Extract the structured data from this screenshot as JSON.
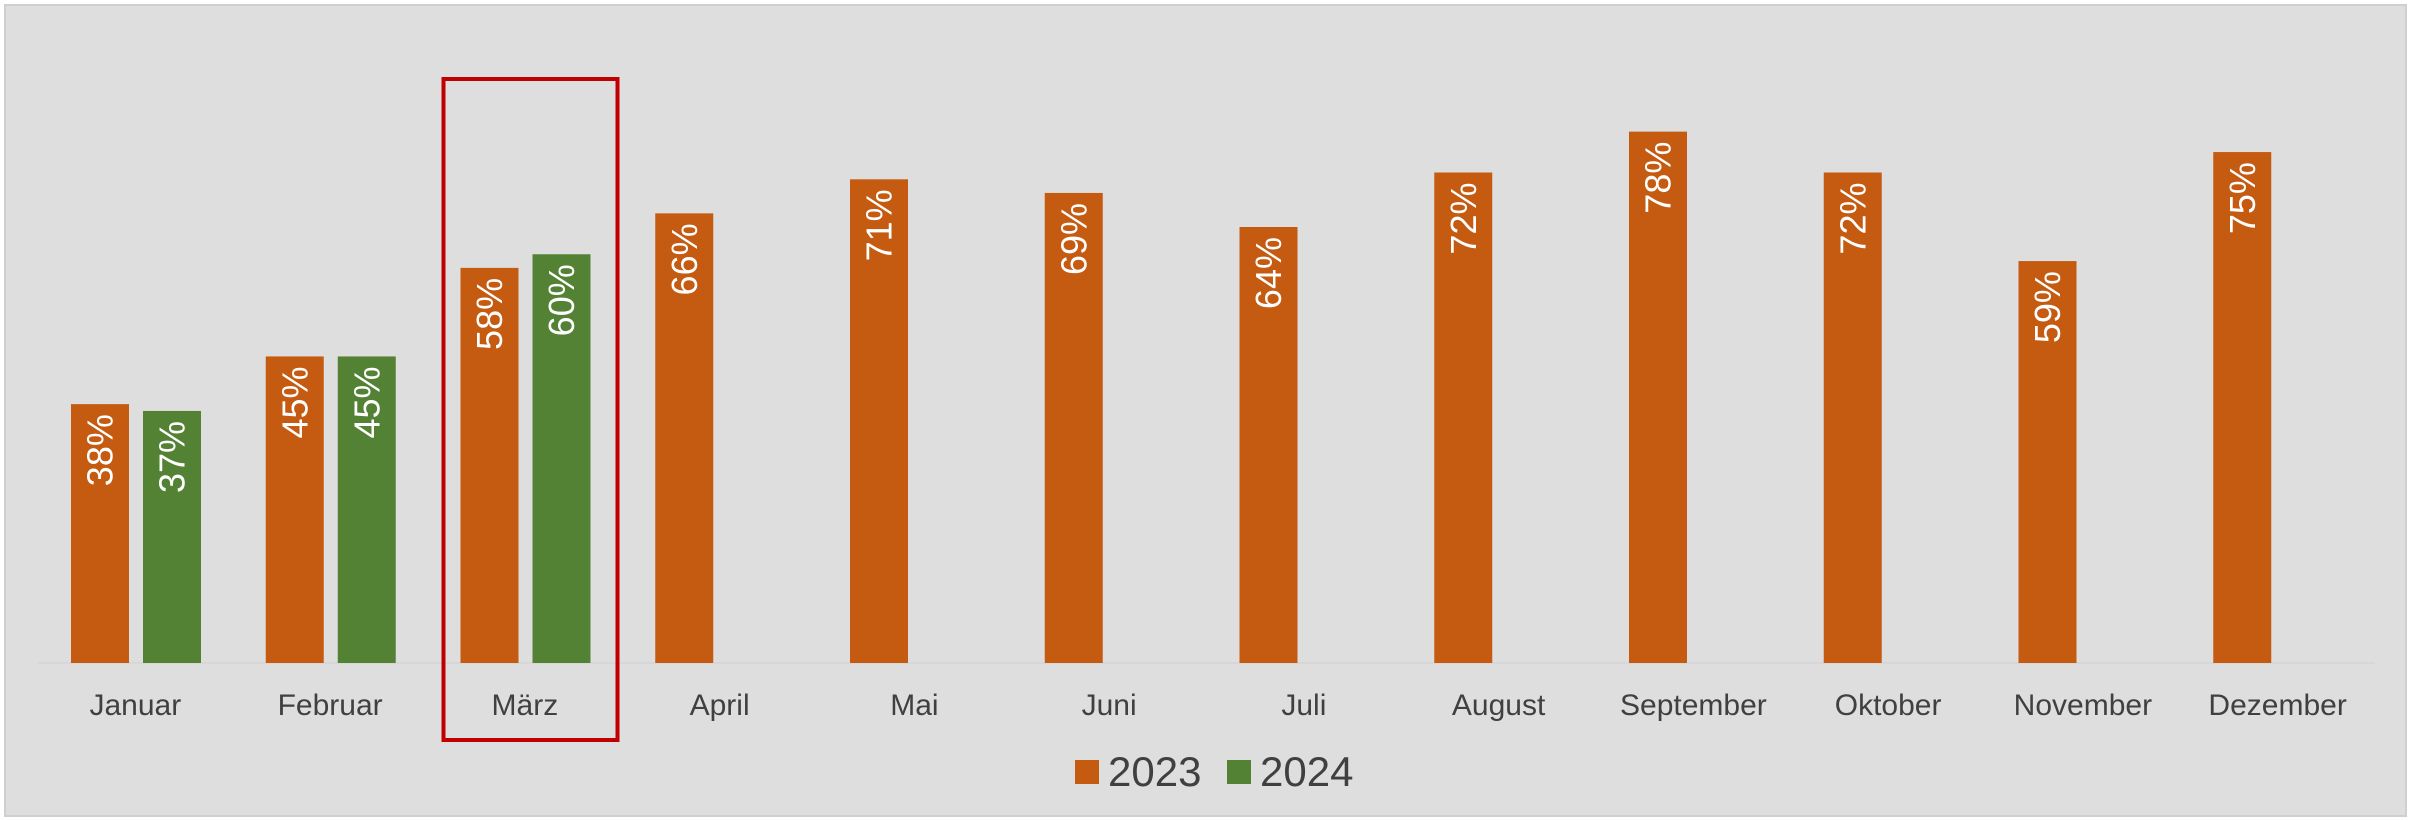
{
  "chart_data": {
    "type": "bar",
    "categories": [
      "Januar",
      "Februar",
      "März",
      "April",
      "Mai",
      "Juni",
      "Juli",
      "August",
      "September",
      "Oktober",
      "November",
      "Dezember"
    ],
    "series": [
      {
        "name": "2023",
        "color": "#c55a11",
        "values": [
          38,
          45,
          58,
          66,
          71,
          69,
          64,
          72,
          78,
          72,
          59,
          75
        ]
      },
      {
        "name": "2024",
        "color": "#548235",
        "values": [
          37,
          45,
          60,
          null,
          null,
          null,
          null,
          null,
          null,
          null,
          null,
          null
        ]
      }
    ],
    "value_format": "{v}%",
    "ylim": [
      0,
      80
    ],
    "grid": false,
    "legend_position": "bottom",
    "highlight": {
      "category": "März",
      "border_color": "#c00000"
    }
  }
}
